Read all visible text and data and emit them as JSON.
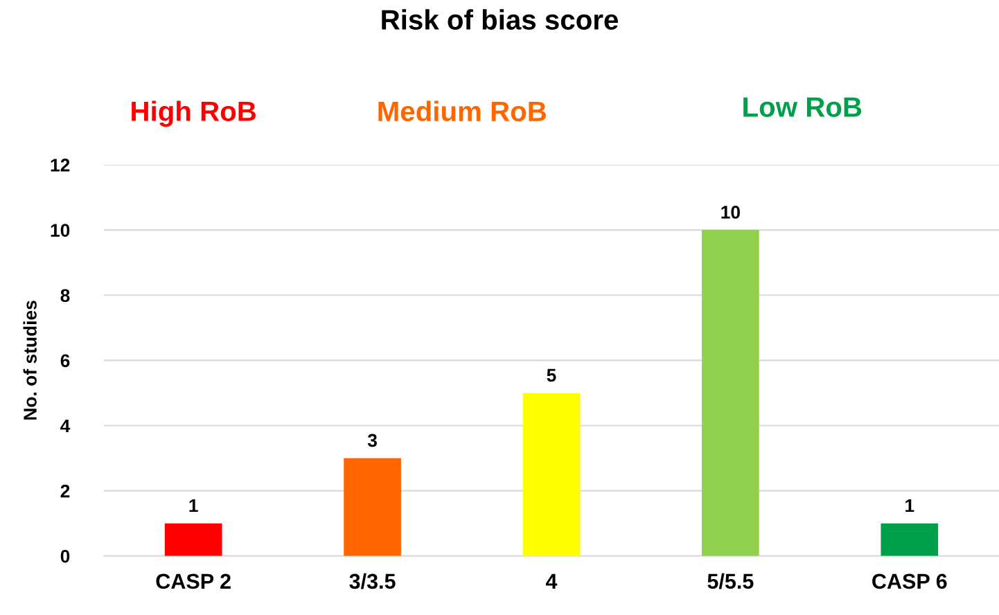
{
  "chart_data": {
    "type": "bar",
    "title": "Risk of bias score",
    "ylabel": "No. of studies",
    "categories": [
      "CASP 2",
      "3/3.5",
      "4",
      "5/5.5",
      "CASP 6"
    ],
    "values": [
      1,
      3,
      5,
      10,
      1
    ],
    "colors": [
      "#ff0000",
      "#ff6600",
      "#ffff00",
      "#92d050",
      "#00a04a"
    ],
    "ylim": [
      0,
      12
    ],
    "yticks": [
      0,
      2,
      4,
      6,
      8,
      10,
      12
    ],
    "grid": "y",
    "data_labels": true,
    "annotations": [
      "High RoB",
      "Medium RoB",
      "Low RoB"
    ]
  }
}
